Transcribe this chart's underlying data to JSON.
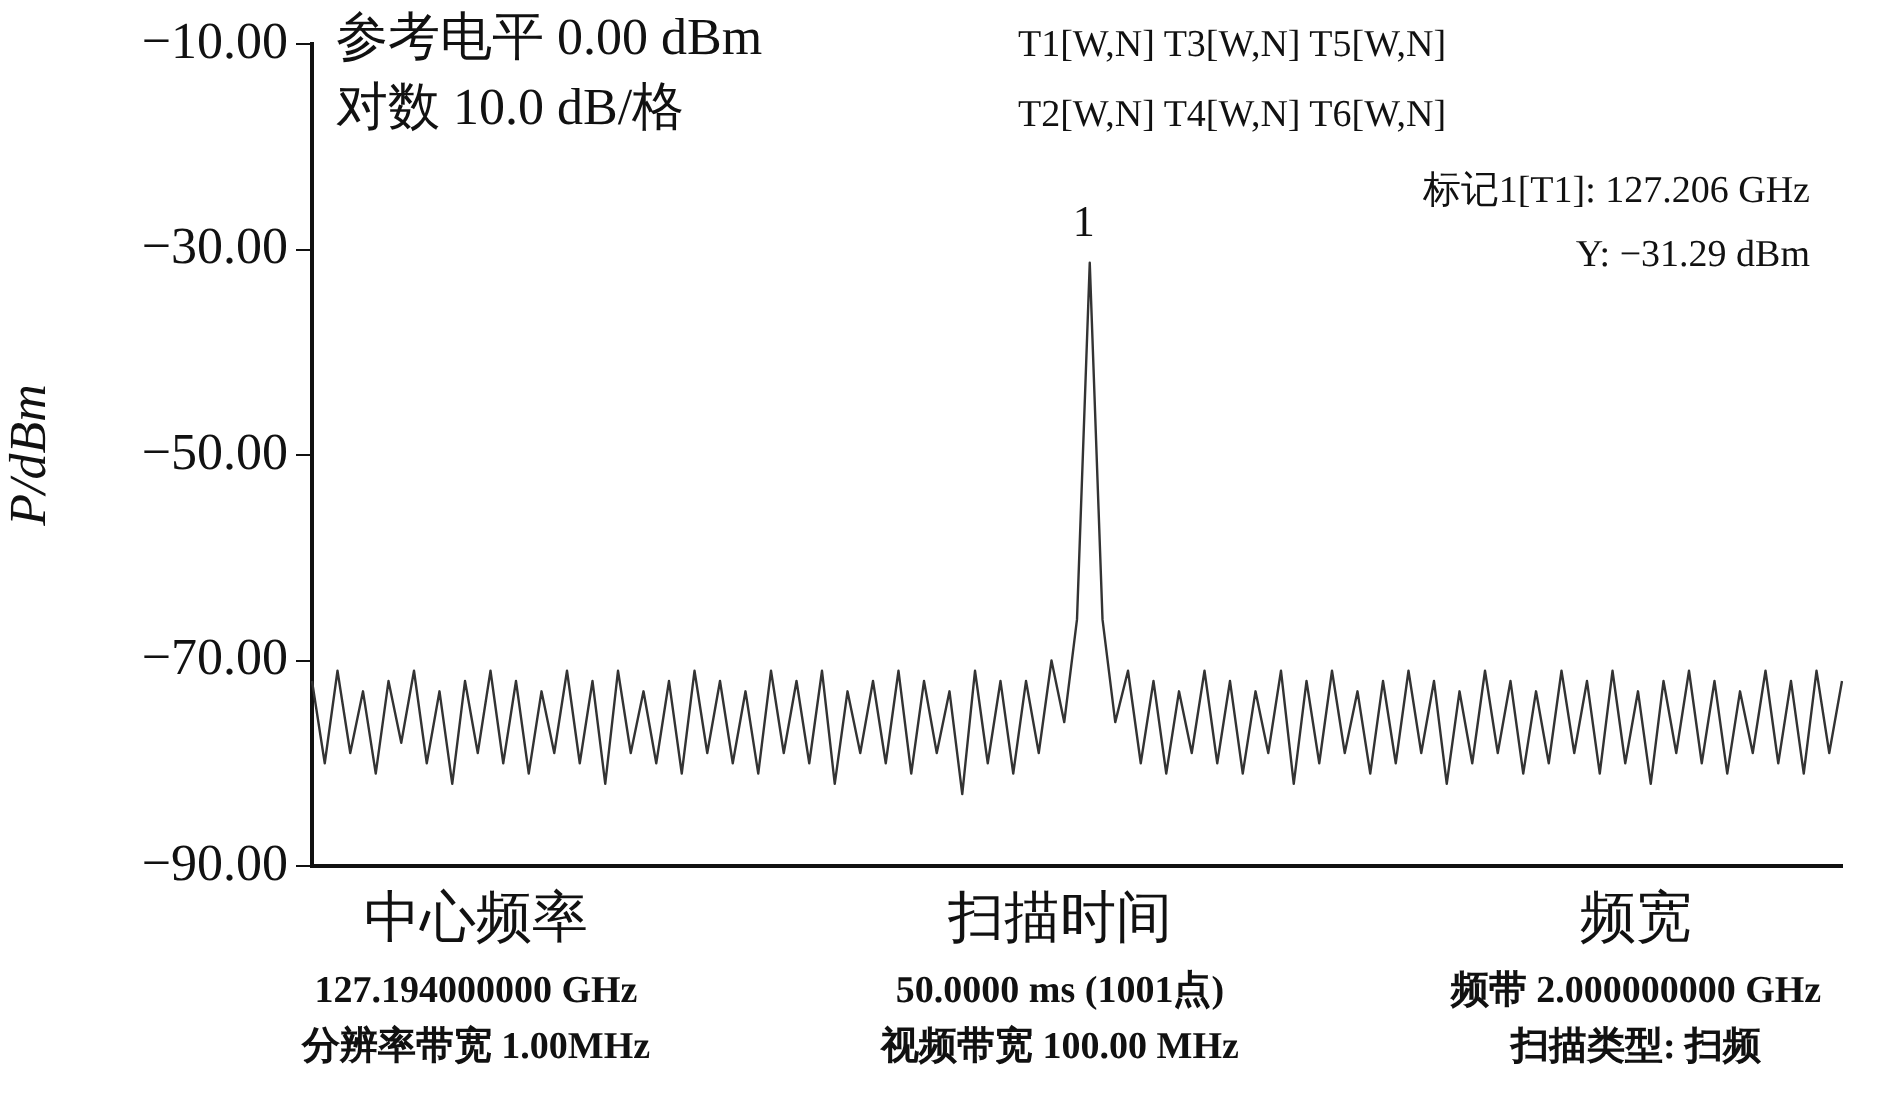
{
  "chart_data": {
    "type": "line",
    "ylabel": "P/dBm",
    "categories": [
      null,
      null,
      null,
      null,
      null,
      null,
      null,
      null,
      null,
      null,
      null,
      null,
      null,
      null,
      null,
      null,
      null,
      null,
      null,
      null,
      null,
      null,
      null,
      null,
      null,
      null,
      null,
      null,
      null,
      null,
      null,
      null,
      null,
      null,
      null,
      null,
      null,
      null,
      null,
      null,
      null,
      null,
      null,
      null,
      null,
      null,
      null,
      null,
      null,
      null,
      null,
      null,
      null,
      null,
      null,
      null,
      null,
      null,
      null,
      null,
      null,
      null,
      null,
      null,
      null,
      null,
      null,
      null,
      null,
      null,
      null,
      null,
      null,
      null,
      null,
      null,
      null,
      null,
      null,
      null,
      null,
      null,
      null,
      null,
      null,
      null,
      null,
      null,
      null,
      null,
      null,
      null,
      null,
      null,
      null,
      null,
      null,
      null,
      null,
      null,
      null,
      null,
      null,
      null,
      null,
      null,
      null,
      null,
      null,
      null,
      null,
      null,
      null,
      null,
      null,
      null,
      null,
      null,
      null,
      null,
      null
    ],
    "series": [
      {
        "color": "#333333",
        "values": [
          -72,
          -80,
          -71,
          -79,
          -73,
          -81,
          -72,
          -78,
          -71,
          -80,
          -73,
          -82,
          -72,
          -79,
          -71,
          -80,
          -72,
          -81,
          -73,
          -79,
          -71,
          -80,
          -72,
          -82,
          -71,
          -79,
          -73,
          -80,
          -72,
          -81,
          -71,
          -79,
          -72,
          -80,
          -73,
          -81,
          -71,
          -79,
          -72,
          -80,
          -71,
          -82,
          -73,
          -79,
          -72,
          -80,
          -71,
          -81,
          -72,
          -79,
          -73,
          -83,
          -71,
          -80,
          -72,
          -81,
          -72,
          -79,
          -70,
          -76,
          -66,
          -31.29,
          -66,
          -76,
          -71,
          -80,
          -72,
          -81,
          -73,
          -79,
          -71,
          -80,
          -72,
          -81,
          -73,
          -79,
          -71,
          -82,
          -72,
          -80,
          -71,
          -79,
          -73,
          -81,
          -72,
          -80,
          -71,
          -79,
          -72,
          -82,
          -73,
          -80,
          -71,
          -79,
          -72,
          -81,
          -73,
          -80,
          -71,
          -79,
          -72,
          -81,
          -71,
          -80,
          -73,
          -82,
          -72,
          -79,
          -71,
          -80,
          -72,
          -81,
          -73,
          -79,
          -71,
          -80,
          -72,
          -81,
          -71,
          -79,
          -72
        ]
      }
    ],
    "ylim": [
      -90,
      -10
    ],
    "yticks": [
      {
        "value": -90,
        "label": "−90.00"
      },
      {
        "value": -70,
        "label": "−70.00"
      },
      {
        "value": -50,
        "label": "−50.00"
      },
      {
        "value": -30,
        "label": "−30.00"
      },
      {
        "value": -10,
        "label": "−10.00"
      }
    ],
    "grid": false,
    "legend": false,
    "marker": "none",
    "line_style": "solid",
    "tick_labels": "y",
    "annotations": [
      "参考电平 0.00 dBm",
      "对数 10.0 dB/格",
      "T1[W,N] T3[W,N] T5[W,N]",
      "T2[W,N] T4[W,N] T6[W,N]",
      "标记1[T1]: 127.206 GHz",
      "Y: −31.29 dBm",
      "1",
      "中心频率",
      "127.194000000 GHz",
      "分辨率带宽 1.00MHz",
      "扫描时间",
      "50.0000 ms (1001点)",
      "视频带宽 100.00 MHz",
      "频宽",
      "频带 2.000000000 GHz",
      "扫描类型: 扫频"
    ]
  }
}
